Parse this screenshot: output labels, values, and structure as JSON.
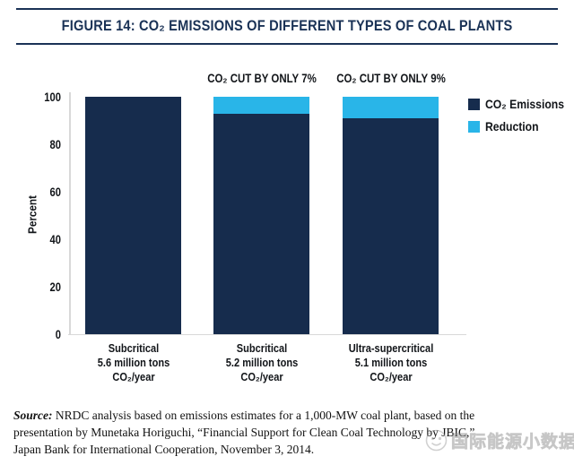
{
  "chart_data": {
    "type": "bar",
    "subtype": "stacked",
    "title": "FIGURE 14: CO₂ EMISSIONS OF DIFFERENT TYPES OF COAL PLANTS",
    "ylabel": "Percent",
    "ylim": [
      0,
      100
    ],
    "yticks": [
      0,
      20,
      40,
      60,
      80,
      100
    ],
    "grid": false,
    "legend_position": "top-right",
    "categories": [
      [
        "Subcritical",
        "5.6 million tons",
        "CO₂/year"
      ],
      [
        "Subcritical",
        "5.2 million tons",
        "CO₂/year"
      ],
      [
        "Ultra-supercritical",
        "5.1 million tons",
        "CO₂/year"
      ]
    ],
    "series": [
      {
        "name": "CO₂ Emissions",
        "color": "#162C4D",
        "values": [
          100,
          93,
          91
        ]
      },
      {
        "name": "Reduction",
        "color": "#29B5E8",
        "values": [
          0,
          7,
          9
        ]
      }
    ],
    "annotations": [
      {
        "bar_index": 1,
        "text": "CO₂ CUT BY ONLY 7%"
      },
      {
        "bar_index": 2,
        "text": "CO₂ CUT BY ONLY 9%"
      }
    ]
  },
  "source": {
    "label": "Source:",
    "lines": [
      " NRDC analysis based on emissions estimates for a 1,000-MW coal plant, based on the",
      "presentation by Munetaka Horiguchi, “Financial Support for Clean Coal Technology by JBIC,”",
      "Japan Bank for International Cooperation, November 3, 2014."
    ]
  },
  "watermark": {
    "text": "国际能源小数据"
  },
  "colors": {
    "navy": "#162C4D",
    "cyan": "#29B5E8",
    "title": "#1A3256",
    "axis": "#d8d8d8"
  }
}
